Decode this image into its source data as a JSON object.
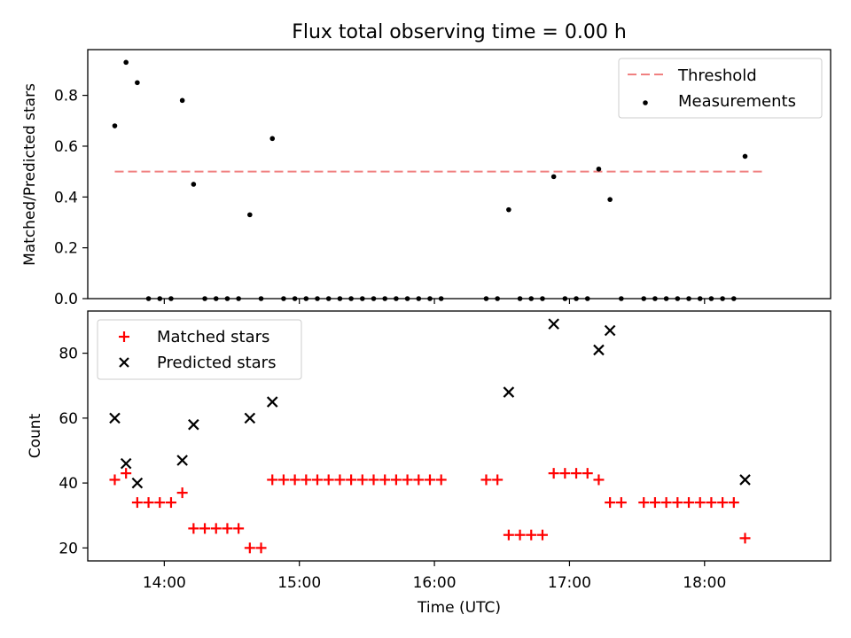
{
  "title": "Flux total observing time = 0.00 h",
  "chart_data": [
    {
      "type": "scatter",
      "ylabel": "Matched/Predicted stars",
      "xlabel": "",
      "ylim": [
        0,
        0.98
      ],
      "yticks": [
        0.0,
        0.2,
        0.4,
        0.6,
        0.8
      ],
      "ytick_labels": [
        "0.0",
        "0.2",
        "0.4",
        "0.6",
        "0.8"
      ],
      "legend": {
        "placement": "top-right",
        "entries": [
          "Threshold",
          "Measurements"
        ]
      },
      "threshold": {
        "name": "Threshold",
        "value": 0.5,
        "x_range": [
          "13:38",
          "18:27"
        ],
        "color": "#f08080"
      },
      "series": [
        {
          "name": "Measurements",
          "color": "#000000",
          "marker": "dot",
          "points": [
            [
              "13:38",
              0.68
            ],
            [
              "13:43",
              0.93
            ],
            [
              "13:48",
              0.85
            ],
            [
              "13:53",
              0.0
            ],
            [
              "13:58",
              0.0
            ],
            [
              "14:03",
              0.0
            ],
            [
              "14:08",
              0.78
            ],
            [
              "14:13",
              0.45
            ],
            [
              "14:18",
              0.0
            ],
            [
              "14:23",
              0.0
            ],
            [
              "14:28",
              0.0
            ],
            [
              "14:33",
              0.0
            ],
            [
              "14:38",
              0.33
            ],
            [
              "14:43",
              0.0
            ],
            [
              "14:48",
              0.63
            ],
            [
              "14:53",
              0.0
            ],
            [
              "14:58",
              0.0
            ],
            [
              "15:03",
              0.0
            ],
            [
              "15:08",
              0.0
            ],
            [
              "15:13",
              0.0
            ],
            [
              "15:18",
              0.0
            ],
            [
              "15:23",
              0.0
            ],
            [
              "15:28",
              0.0
            ],
            [
              "15:33",
              0.0
            ],
            [
              "15:38",
              0.0
            ],
            [
              "15:43",
              0.0
            ],
            [
              "15:48",
              0.0
            ],
            [
              "15:53",
              0.0
            ],
            [
              "15:58",
              0.0
            ],
            [
              "16:03",
              0.0
            ],
            [
              "16:23",
              0.0
            ],
            [
              "16:28",
              0.0
            ],
            [
              "16:33",
              0.35
            ],
            [
              "16:38",
              0.0
            ],
            [
              "16:43",
              0.0
            ],
            [
              "16:48",
              0.0
            ],
            [
              "16:53",
              0.48
            ],
            [
              "16:58",
              0.0
            ],
            [
              "17:03",
              0.0
            ],
            [
              "17:08",
              0.0
            ],
            [
              "17:13",
              0.51
            ],
            [
              "17:18",
              0.39
            ],
            [
              "17:23",
              0.0
            ],
            [
              "17:33",
              0.0
            ],
            [
              "17:38",
              0.0
            ],
            [
              "17:43",
              0.0
            ],
            [
              "17:48",
              0.0
            ],
            [
              "17:53",
              0.0
            ],
            [
              "17:58",
              0.0
            ],
            [
              "18:03",
              0.0
            ],
            [
              "18:08",
              0.0
            ],
            [
              "18:13",
              0.0
            ],
            [
              "18:18",
              0.56
            ]
          ]
        }
      ]
    },
    {
      "type": "scatter",
      "ylabel": "Count",
      "xlabel": "Time (UTC)",
      "xlim": [
        "13:26",
        "18:56"
      ],
      "xticks": [
        "14:00",
        "15:00",
        "16:00",
        "17:00",
        "18:00"
      ],
      "ylim": [
        16,
        93
      ],
      "yticks": [
        20,
        40,
        60,
        80
      ],
      "ytick_labels": [
        "20",
        "40",
        "60",
        "80"
      ],
      "legend": {
        "placement": "top-left",
        "entries": [
          "Matched stars",
          "Predicted stars"
        ]
      },
      "series": [
        {
          "name": "Matched stars",
          "color": "#ff0000",
          "marker": "plus",
          "points": [
            [
              "13:38",
              41
            ],
            [
              "13:43",
              43
            ],
            [
              "13:48",
              34
            ],
            [
              "13:53",
              34
            ],
            [
              "13:58",
              34
            ],
            [
              "14:03",
              34
            ],
            [
              "14:08",
              37
            ],
            [
              "14:13",
              26
            ],
            [
              "14:18",
              26
            ],
            [
              "14:23",
              26
            ],
            [
              "14:28",
              26
            ],
            [
              "14:33",
              26
            ],
            [
              "14:38",
              20
            ],
            [
              "14:43",
              20
            ],
            [
              "14:48",
              41
            ],
            [
              "14:53",
              41
            ],
            [
              "14:58",
              41
            ],
            [
              "15:03",
              41
            ],
            [
              "15:08",
              41
            ],
            [
              "15:13",
              41
            ],
            [
              "15:18",
              41
            ],
            [
              "15:23",
              41
            ],
            [
              "15:28",
              41
            ],
            [
              "15:33",
              41
            ],
            [
              "15:38",
              41
            ],
            [
              "15:43",
              41
            ],
            [
              "15:48",
              41
            ],
            [
              "15:53",
              41
            ],
            [
              "15:58",
              41
            ],
            [
              "16:03",
              41
            ],
            [
              "16:23",
              41
            ],
            [
              "16:28",
              41
            ],
            [
              "16:33",
              24
            ],
            [
              "16:38",
              24
            ],
            [
              "16:43",
              24
            ],
            [
              "16:48",
              24
            ],
            [
              "16:53",
              43
            ],
            [
              "16:58",
              43
            ],
            [
              "17:03",
              43
            ],
            [
              "17:08",
              43
            ],
            [
              "17:13",
              41
            ],
            [
              "17:18",
              34
            ],
            [
              "17:23",
              34
            ],
            [
              "17:33",
              34
            ],
            [
              "17:38",
              34
            ],
            [
              "17:43",
              34
            ],
            [
              "17:48",
              34
            ],
            [
              "17:53",
              34
            ],
            [
              "17:58",
              34
            ],
            [
              "18:03",
              34
            ],
            [
              "18:08",
              34
            ],
            [
              "18:13",
              34
            ],
            [
              "18:18",
              23
            ]
          ]
        },
        {
          "name": "Predicted stars",
          "color": "#000000",
          "marker": "x",
          "points": [
            [
              "13:38",
              60
            ],
            [
              "13:43",
              46
            ],
            [
              "13:48",
              40
            ],
            [
              "14:08",
              47
            ],
            [
              "14:13",
              58
            ],
            [
              "14:38",
              60
            ],
            [
              "14:48",
              65
            ],
            [
              "16:33",
              68
            ],
            [
              "16:53",
              89
            ],
            [
              "17:13",
              81
            ],
            [
              "17:18",
              87
            ],
            [
              "18:18",
              41
            ]
          ]
        }
      ]
    }
  ]
}
